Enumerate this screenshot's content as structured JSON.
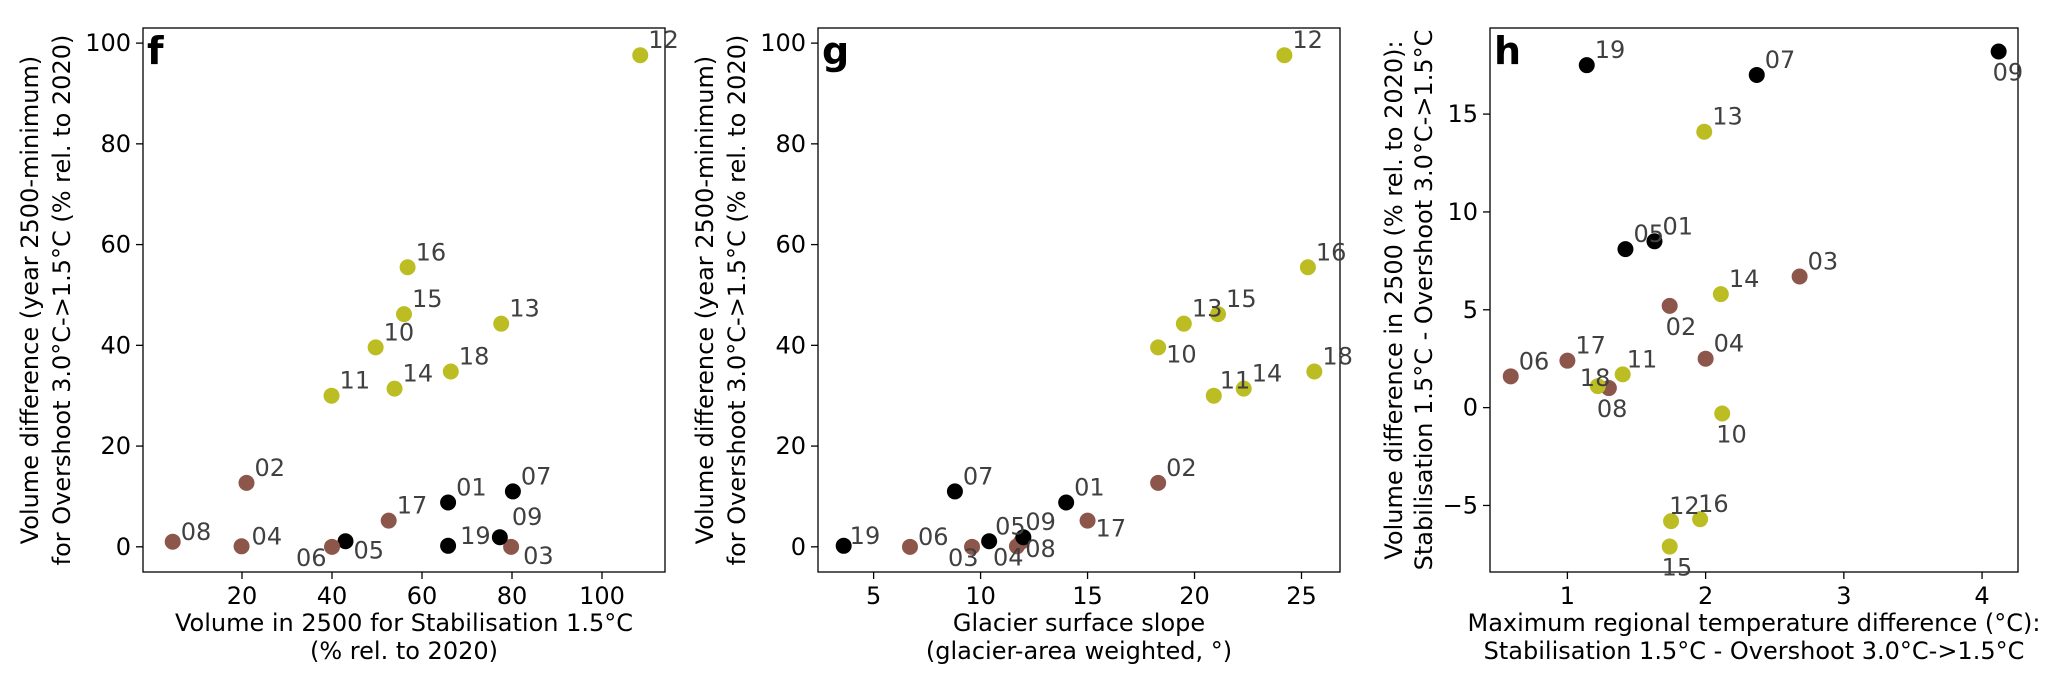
{
  "chart_data": [
    {
      "type": "scatter",
      "panel_label": "f",
      "xlabel_lines": [
        "Volume in 2500 for Stabilisation 1.5°C",
        "(% rel. to 2020)"
      ],
      "ylabel_lines": [
        "Volume difference (year 2500-minimum)",
        "for Overshoot 3.0°C->1.5°C (% rel. to 2020)"
      ],
      "xlim": [
        -2,
        114
      ],
      "ylim": [
        -5,
        103
      ],
      "xticks": [
        20,
        40,
        60,
        80,
        100
      ],
      "yticks": [
        0,
        20,
        40,
        60,
        80,
        100
      ],
      "grid": false,
      "points": [
        {
          "id": "01",
          "x": 65.8,
          "y": 8.8,
          "group": "black"
        },
        {
          "id": "02",
          "x": 21.0,
          "y": 12.7,
          "group": "brown"
        },
        {
          "id": "03",
          "x": 79.8,
          "y": 0.0,
          "group": "brown"
        },
        {
          "id": "04",
          "x": 19.9,
          "y": 0.1,
          "group": "brown"
        },
        {
          "id": "05",
          "x": 43.0,
          "y": 1.1,
          "group": "black"
        },
        {
          "id": "06",
          "x": 40.0,
          "y": 0.0,
          "group": "brown"
        },
        {
          "id": "07",
          "x": 80.2,
          "y": 11.0,
          "group": "black"
        },
        {
          "id": "08",
          "x": 4.6,
          "y": 1.0,
          "group": "brown"
        },
        {
          "id": "09",
          "x": 77.3,
          "y": 1.9,
          "group": "black"
        },
        {
          "id": "10",
          "x": 49.7,
          "y": 39.6,
          "group": "olive"
        },
        {
          "id": "11",
          "x": 39.9,
          "y": 30.0,
          "group": "olive"
        },
        {
          "id": "12",
          "x": 108.5,
          "y": 97.6,
          "group": "olive"
        },
        {
          "id": "13",
          "x": 77.6,
          "y": 44.3,
          "group": "olive"
        },
        {
          "id": "14",
          "x": 53.9,
          "y": 31.4,
          "group": "olive"
        },
        {
          "id": "15",
          "x": 56.0,
          "y": 46.2,
          "group": "olive"
        },
        {
          "id": "16",
          "x": 56.8,
          "y": 55.5,
          "group": "olive"
        },
        {
          "id": "17",
          "x": 52.6,
          "y": 5.2,
          "group": "brown"
        },
        {
          "id": "18",
          "x": 66.4,
          "y": 34.8,
          "group": "olive"
        },
        {
          "id": "19",
          "x": 65.8,
          "y": 0.2,
          "group": "black"
        }
      ]
    },
    {
      "type": "scatter",
      "panel_label": "g",
      "xlabel_lines": [
        "Glacier surface slope",
        "(glacier-area weighted, °)"
      ],
      "ylabel_lines": [
        "Volume difference (year 2500-minimum)",
        "for Overshoot 3.0°C->1.5°C (% rel. to 2020)"
      ],
      "xlim": [
        2.4,
        26.8
      ],
      "ylim": [
        -5,
        103
      ],
      "xticks": [
        5,
        10,
        15,
        20,
        25
      ],
      "yticks": [
        0,
        20,
        40,
        60,
        80,
        100
      ],
      "grid": false,
      "points": [
        {
          "id": "01",
          "x": 14.0,
          "y": 8.8,
          "group": "black"
        },
        {
          "id": "02",
          "x": 18.3,
          "y": 12.7,
          "group": "brown"
        },
        {
          "id": "03",
          "x": 9.6,
          "y": 0.0,
          "group": "brown"
        },
        {
          "id": "04",
          "x": 11.7,
          "y": 0.1,
          "group": "brown"
        },
        {
          "id": "05",
          "x": 10.4,
          "y": 1.1,
          "group": "black"
        },
        {
          "id": "06",
          "x": 6.7,
          "y": 0.0,
          "group": "brown"
        },
        {
          "id": "07",
          "x": 8.8,
          "y": 11.0,
          "group": "black"
        },
        {
          "id": "08",
          "x": 11.9,
          "y": 1.0,
          "group": "brown"
        },
        {
          "id": "09",
          "x": 12.0,
          "y": 1.9,
          "group": "black"
        },
        {
          "id": "10",
          "x": 18.3,
          "y": 39.6,
          "group": "olive"
        },
        {
          "id": "11",
          "x": 20.9,
          "y": 30.0,
          "group": "olive"
        },
        {
          "id": "12",
          "x": 24.2,
          "y": 97.6,
          "group": "olive"
        },
        {
          "id": "13",
          "x": 19.5,
          "y": 44.3,
          "group": "olive"
        },
        {
          "id": "14",
          "x": 22.3,
          "y": 31.4,
          "group": "olive"
        },
        {
          "id": "15",
          "x": 21.1,
          "y": 46.2,
          "group": "olive"
        },
        {
          "id": "16",
          "x": 25.3,
          "y": 55.5,
          "group": "olive"
        },
        {
          "id": "17",
          "x": 15.0,
          "y": 5.2,
          "group": "brown"
        },
        {
          "id": "18",
          "x": 25.6,
          "y": 34.8,
          "group": "olive"
        },
        {
          "id": "19",
          "x": 3.6,
          "y": 0.2,
          "group": "black"
        }
      ]
    },
    {
      "type": "scatter",
      "panel_label": "h",
      "xlabel_lines": [
        "Maximum regional temperature difference (°C):",
        "Stabilisation 1.5°C - Overshoot 3.0°C->1.5°C"
      ],
      "ylabel_lines": [
        "Volume difference in 2500 (% rel. to 2020):",
        "Stabilisation 1.5°C - Overshoot 3.0°C->1.5°C"
      ],
      "xlim": [
        0.44,
        4.26
      ],
      "ylim": [
        -8.4,
        19.4
      ],
      "xticks": [
        1,
        2,
        3,
        4
      ],
      "yticks": [
        -5,
        0,
        5,
        10,
        15
      ],
      "grid": false,
      "points": [
        {
          "id": "01",
          "x": 1.63,
          "y": 8.5,
          "group": "black"
        },
        {
          "id": "02",
          "x": 1.74,
          "y": 5.2,
          "group": "brown"
        },
        {
          "id": "03",
          "x": 2.68,
          "y": 6.7,
          "group": "brown"
        },
        {
          "id": "04",
          "x": 2.0,
          "y": 2.5,
          "group": "brown"
        },
        {
          "id": "05",
          "x": 1.42,
          "y": 8.1,
          "group": "black"
        },
        {
          "id": "06",
          "x": 0.59,
          "y": 1.6,
          "group": "brown"
        },
        {
          "id": "07",
          "x": 2.37,
          "y": 17.0,
          "group": "black"
        },
        {
          "id": "08",
          "x": 1.3,
          "y": 1.0,
          "group": "brown"
        },
        {
          "id": "09",
          "x": 4.12,
          "y": 18.2,
          "group": "black"
        },
        {
          "id": "10",
          "x": 2.12,
          "y": -0.3,
          "group": "olive"
        },
        {
          "id": "11",
          "x": 1.4,
          "y": 1.7,
          "group": "olive"
        },
        {
          "id": "12",
          "x": 1.75,
          "y": -5.8,
          "group": "olive"
        },
        {
          "id": "13",
          "x": 1.99,
          "y": 14.1,
          "group": "olive"
        },
        {
          "id": "14",
          "x": 2.11,
          "y": 5.8,
          "group": "olive"
        },
        {
          "id": "15",
          "x": 1.74,
          "y": -7.1,
          "group": "olive"
        },
        {
          "id": "16",
          "x": 1.96,
          "y": -5.7,
          "group": "olive"
        },
        {
          "id": "17",
          "x": 1.0,
          "y": 2.4,
          "group": "brown"
        },
        {
          "id": "18",
          "x": 1.22,
          "y": 1.1,
          "group": "olive"
        },
        {
          "id": "19",
          "x": 1.14,
          "y": 17.5,
          "group": "black"
        }
      ]
    }
  ],
  "colors": {
    "black": "#000000",
    "brown": "#8c564b",
    "olive": "#bcbd22"
  }
}
